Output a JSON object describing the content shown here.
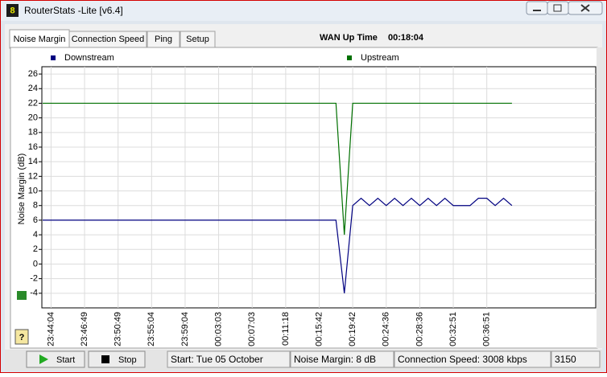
{
  "window": {
    "app_icon": "8",
    "title": "RouterStats -Lite [v6.4]"
  },
  "tabs": [
    "Noise Margin",
    "Connection Speed",
    "Ping",
    "Setup"
  ],
  "wan_up_time": {
    "label": "WAN Up Time",
    "value": "00:18:04"
  },
  "chart_data": {
    "type": "line",
    "y_label": "Noise Margin (dB)",
    "categories": [
      null,
      "23:44:04",
      null,
      null,
      null,
      "23:46:49",
      null,
      null,
      null,
      "23:50:49",
      null,
      null,
      null,
      "23:55:04",
      null,
      null,
      null,
      "23:59:04",
      null,
      null,
      null,
      "00:03:03",
      null,
      null,
      null,
      "00:07:03",
      null,
      null,
      null,
      "00:11:18",
      null,
      null,
      null,
      "00:15:42",
      null,
      null,
      null,
      "00:19:42",
      null,
      null,
      null,
      "00:24:36",
      null,
      null,
      null,
      "00:28:36",
      null,
      null,
      null,
      "00:32:51",
      null,
      null,
      null,
      "00:36:51",
      null,
      null,
      null,
      null,
      null,
      null,
      null,
      null,
      null,
      null,
      null,
      null,
      null
    ],
    "series": [
      {
        "name": "Downstream",
        "color": "#000080",
        "values": [
          6,
          6,
          6,
          6,
          6,
          6,
          6,
          6,
          6,
          6,
          6,
          6,
          6,
          6,
          6,
          6,
          6,
          6,
          6,
          6,
          6,
          6,
          6,
          6,
          6,
          6,
          6,
          6,
          6,
          6,
          6,
          6,
          6,
          6,
          6,
          6,
          -4,
          8,
          9,
          8,
          9,
          8,
          9,
          8,
          9,
          8,
          9,
          8,
          9,
          8,
          8,
          8,
          9,
          9,
          8,
          9,
          8,
          null,
          null,
          null,
          null,
          null,
          null,
          null,
          null,
          null,
          null
        ]
      },
      {
        "name": "Upstream",
        "color": "#007000",
        "values": [
          22,
          22,
          22,
          22,
          22,
          22,
          22,
          22,
          22,
          22,
          22,
          22,
          22,
          22,
          22,
          22,
          22,
          22,
          22,
          22,
          22,
          22,
          22,
          22,
          22,
          22,
          22,
          22,
          22,
          22,
          22,
          22,
          22,
          22,
          22,
          22,
          4,
          22,
          22,
          22,
          22,
          22,
          22,
          22,
          22,
          22,
          22,
          22,
          22,
          22,
          22,
          22,
          22,
          22,
          22,
          22,
          22,
          null,
          null,
          null,
          null,
          null,
          null,
          null,
          null,
          null,
          null
        ]
      }
    ],
    "ylim": [
      -6,
      27
    ],
    "yticks": [
      -4,
      -2,
      0,
      2,
      4,
      6,
      8,
      10,
      12,
      14,
      16,
      18,
      20,
      22,
      24,
      26
    ],
    "grid": true
  },
  "buttons": [
    "Start",
    "Stop"
  ],
  "status_bar": [
    "Start: Tue 05 October",
    "Noise Margin: 8 dB",
    "Connection Speed: 3008 kbps",
    "3150"
  ]
}
